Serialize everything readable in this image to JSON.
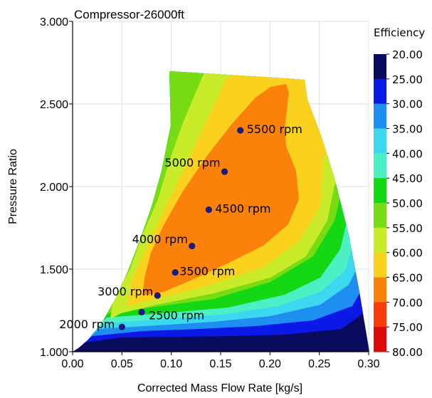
{
  "chart_data": {
    "type": "contour",
    "title": "Compressor-26000ft",
    "xlabel": "Corrected Mass Flow Rate [kg/s]",
    "ylabel": "Pressure Ratio",
    "xlim": [
      0.0,
      0.3
    ],
    "ylim": [
      1.0,
      3.0
    ],
    "x_ticks": [
      "0.00",
      "0.05",
      "0.10",
      "0.15",
      "0.20",
      "0.25",
      "0.30"
    ],
    "y_ticks": [
      "1.000",
      "1.500",
      "2.000",
      "2.500",
      "3.000"
    ],
    "grid": true,
    "colorbar": {
      "title": "Efficiency",
      "levels": [
        "20.00",
        "25.00",
        "30.00",
        "35.00",
        "40.00",
        "45.00",
        "50.00",
        "55.00",
        "60.00",
        "65.00",
        "70.00",
        "75.00",
        "80.00"
      ],
      "colors": [
        "#0a0a5e",
        "#0a19e6",
        "#1e8ef0",
        "#3cd8f0",
        "#4cf0c4",
        "#14d814",
        "#78dc14",
        "#c8ec2a",
        "#fad21e",
        "#fa820a",
        "#fa3c0a",
        "#dc0a0a"
      ]
    },
    "points": [
      {
        "x": 0.05,
        "y": 1.15,
        "label": "2000 rpm"
      },
      {
        "x": 0.07,
        "y": 1.24,
        "label": "2500 rpm"
      },
      {
        "x": 0.086,
        "y": 1.34,
        "label": "3000 rpm"
      },
      {
        "x": 0.104,
        "y": 1.48,
        "label": "3500 rpm"
      },
      {
        "x": 0.121,
        "y": 1.64,
        "label": "4000 rpm"
      },
      {
        "x": 0.138,
        "y": 1.86,
        "label": "4500 rpm"
      },
      {
        "x": 0.154,
        "y": 2.09,
        "label": "5000 rpm"
      },
      {
        "x": 0.17,
        "y": 2.34,
        "label": "5500 rpm"
      }
    ]
  }
}
